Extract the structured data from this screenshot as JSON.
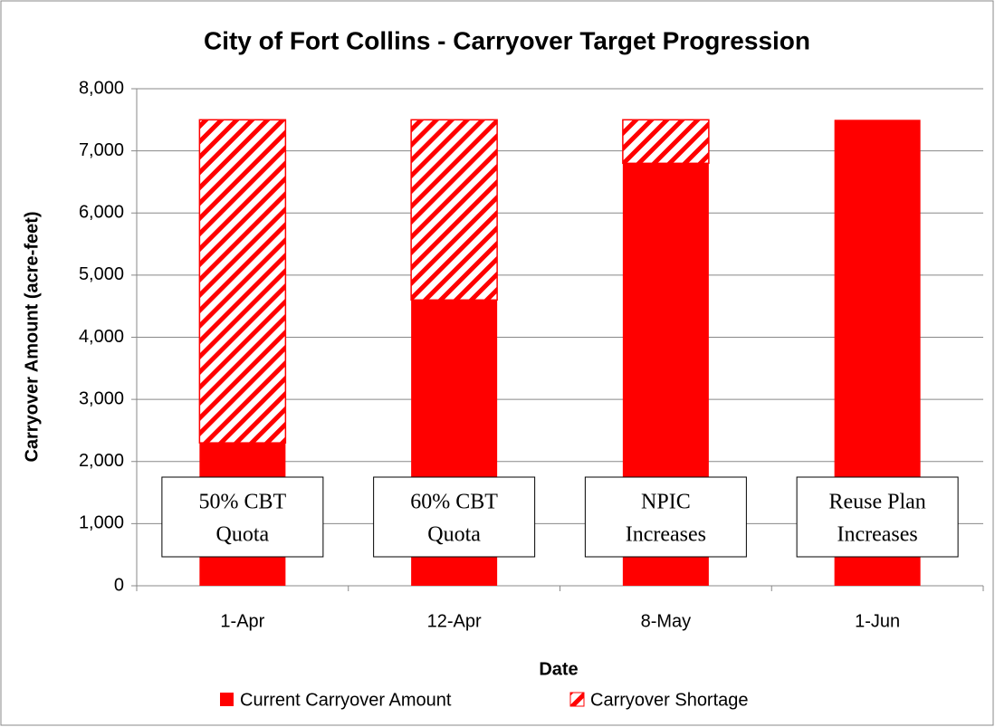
{
  "chart_data": {
    "type": "stacked_bar",
    "title": "City of Fort Collins - Carryover Target Progression",
    "x_label": "Date",
    "y_label": "Carryover Amount (acre-feet)",
    "categories": [
      "1-Apr",
      "12-Apr",
      "8-May",
      "1-Jun"
    ],
    "series": [
      {
        "name": "Current Carryover Amount",
        "color": "#ff0000",
        "values": [
          2300,
          4600,
          6800,
          7500
        ]
      },
      {
        "name": "Carryover Shortage",
        "color": "#ff0000",
        "pattern": "hatch",
        "values": [
          5200,
          2900,
          700,
          0
        ]
      }
    ],
    "annotations": [
      [
        "50% CBT",
        "Quota"
      ],
      [
        "60% CBT",
        "Quota"
      ],
      [
        "NPIC",
        "Increases"
      ],
      [
        "Reuse Plan",
        "Increases"
      ]
    ],
    "ylim": [
      0,
      8000
    ],
    "yticks": [
      0,
      {
        "value": 1000,
        "label": "1,000"
      },
      {
        "value": 2000,
        "label": "2,000"
      },
      {
        "value": 3000,
        "label": "3,000"
      },
      {
        "value": 4000,
        "label": "4,000"
      },
      {
        "value": 5000,
        "label": "5,000"
      },
      {
        "value": 6000,
        "label": "6,000"
      },
      {
        "value": 7000,
        "label": "7,000"
      },
      {
        "value": 8000,
        "label": "8,000"
      }
    ],
    "grid": true,
    "legend": "bottom"
  }
}
